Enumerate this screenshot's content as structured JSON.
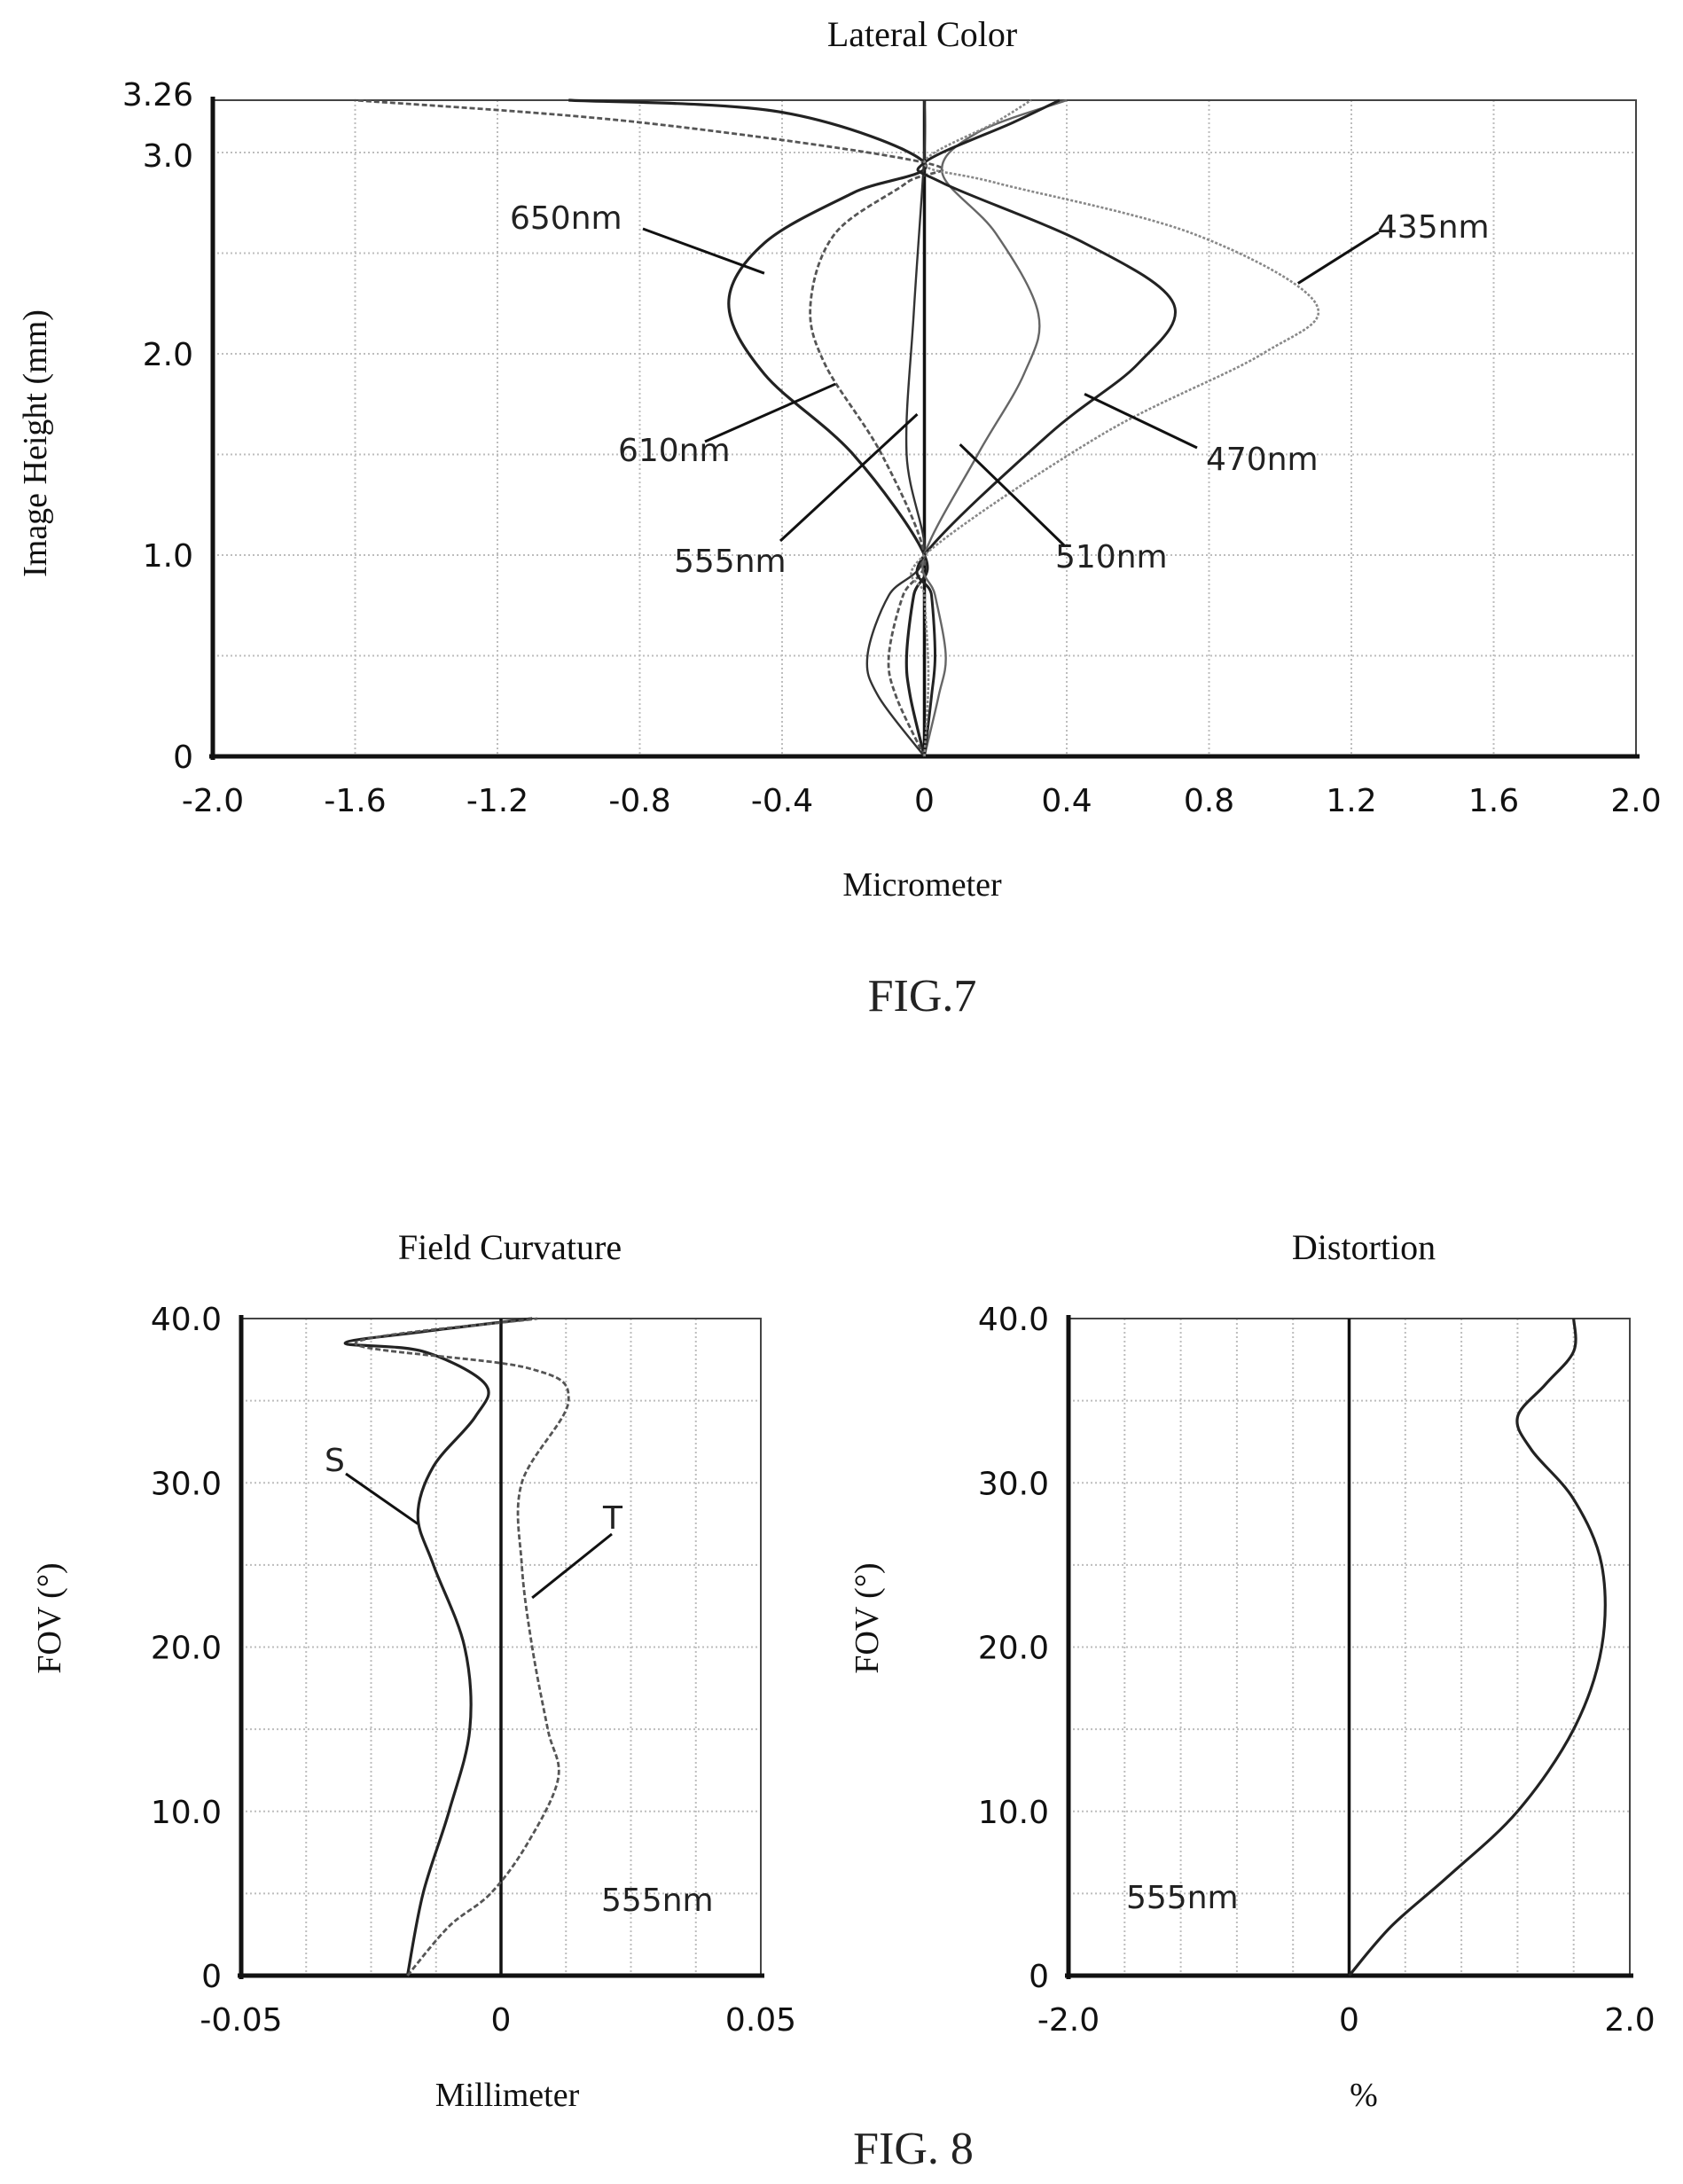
{
  "figures": {
    "fig7_caption": "FIG.7",
    "fig8_caption": "FIG. 8"
  },
  "chart_data": [
    {
      "type": "line",
      "title": "Lateral Color",
      "xlabel": "Micrometer",
      "ylabel": "Image Height (mm)",
      "xlim": [
        -2.0,
        2.0
      ],
      "ylim": [
        0,
        3.26
      ],
      "x_ticks": [
        "-2.0",
        "-1.6",
        "-1.2",
        "-0.8",
        "-0.4",
        "0",
        "0.4",
        "0.8",
        "1.2",
        "1.6",
        "2.0"
      ],
      "y_ticks": [
        "0",
        "1.0",
        "2.0",
        "3.0",
        "3.26"
      ],
      "grid": true,
      "series": [
        {
          "name": "650nm",
          "points": [
            [
              0,
              0
            ],
            [
              -0.04,
              0.3
            ],
            [
              -0.05,
              0.5
            ],
            [
              -0.03,
              0.8
            ],
            [
              0,
              1.0
            ],
            [
              -0.2,
              1.5
            ],
            [
              -0.45,
              1.9
            ],
            [
              -0.55,
              2.25
            ],
            [
              -0.45,
              2.55
            ],
            [
              -0.2,
              2.8
            ],
            [
              0,
              2.95
            ],
            [
              -0.4,
              3.2
            ],
            [
              -1.0,
              3.26
            ]
          ]
        },
        {
          "name": "610nm",
          "points": [
            [
              0,
              0
            ],
            [
              -0.08,
              0.3
            ],
            [
              -0.1,
              0.5
            ],
            [
              -0.06,
              0.8
            ],
            [
              0,
              1.0
            ],
            [
              -0.12,
              1.5
            ],
            [
              -0.28,
              1.95
            ],
            [
              -0.32,
              2.25
            ],
            [
              -0.25,
              2.6
            ],
            [
              -0.05,
              2.85
            ],
            [
              0,
              2.95
            ],
            [
              -0.8,
              3.15
            ],
            [
              -1.6,
              3.26
            ]
          ]
        },
        {
          "name": "555nm",
          "points": [
            [
              0,
              0
            ],
            [
              -0.13,
              0.3
            ],
            [
              -0.16,
              0.5
            ],
            [
              -0.1,
              0.8
            ],
            [
              0,
              1.0
            ],
            [
              -0.05,
              1.5
            ],
            [
              -0.03,
              2.2
            ],
            [
              0,
              3.0
            ],
            [
              0,
              3.26
            ]
          ]
        },
        {
          "name": "510nm",
          "points": [
            [
              0,
              0
            ],
            [
              0.04,
              0.3
            ],
            [
              0.06,
              0.5
            ],
            [
              0.03,
              0.8
            ],
            [
              0,
              1.0
            ],
            [
              0.15,
              1.5
            ],
            [
              0.28,
              1.9
            ],
            [
              0.32,
              2.2
            ],
            [
              0.2,
              2.6
            ],
            [
              0.05,
              2.9
            ],
            [
              0.15,
              3.1
            ],
            [
              0.4,
              3.26
            ]
          ]
        },
        {
          "name": "470nm",
          "points": [
            [
              0,
              0
            ],
            [
              0.02,
              0.3
            ],
            [
              0.03,
              0.5
            ],
            [
              0.02,
              0.8
            ],
            [
              0,
              1.0
            ],
            [
              0.35,
              1.6
            ],
            [
              0.6,
              1.95
            ],
            [
              0.7,
              2.25
            ],
            [
              0.45,
              2.55
            ],
            [
              0.05,
              2.85
            ],
            [
              0,
              2.95
            ],
            [
              0.25,
              3.15
            ],
            [
              0.38,
              3.26
            ]
          ]
        },
        {
          "name": "435nm",
          "points": [
            [
              0,
              0
            ],
            [
              0.01,
              0.3
            ],
            [
              0.01,
              0.5
            ],
            [
              0,
              0.8
            ],
            [
              0,
              1.0
            ],
            [
              0.5,
              1.6
            ],
            [
              0.95,
              2.0
            ],
            [
              1.1,
              2.25
            ],
            [
              0.75,
              2.6
            ],
            [
              0.2,
              2.85
            ],
            [
              0,
              2.95
            ],
            [
              0.2,
              3.15
            ],
            [
              0.3,
              3.26
            ]
          ]
        }
      ],
      "annotations": [
        "650nm",
        "610nm",
        "555nm",
        "510nm",
        "470nm",
        "435nm"
      ]
    },
    {
      "type": "line",
      "title": "Field Curvature",
      "xlabel": "Millimeter",
      "ylabel": "FOV (°)",
      "xlim": [
        -0.05,
        0.05
      ],
      "ylim": [
        0,
        40.0
      ],
      "x_ticks": [
        "-0.05",
        "0",
        "0.05"
      ],
      "y_ticks": [
        "0",
        "10.0",
        "20.0",
        "30.0",
        "40.0"
      ],
      "grid": true,
      "annotation": "555nm",
      "series": [
        {
          "name": "S",
          "points": [
            [
              -0.018,
              0
            ],
            [
              -0.015,
              5
            ],
            [
              -0.01,
              10
            ],
            [
              -0.006,
              15
            ],
            [
              -0.007,
              20
            ],
            [
              -0.013,
              25
            ],
            [
              -0.016,
              28
            ],
            [
              -0.013,
              31
            ],
            [
              -0.005,
              34
            ],
            [
              -0.003,
              36
            ],
            [
              -0.015,
              38
            ],
            [
              -0.03,
              38.5
            ],
            [
              -0.015,
              39.2
            ],
            [
              0.006,
              40
            ]
          ]
        },
        {
          "name": "T",
          "points": [
            [
              -0.018,
              0
            ],
            [
              -0.01,
              3
            ],
            [
              -0.002,
              5
            ],
            [
              0.005,
              8
            ],
            [
              0.011,
              12
            ],
            [
              0.009,
              15
            ],
            [
              0.006,
              20
            ],
            [
              0.004,
              25
            ],
            [
              0.004,
              30
            ],
            [
              0.013,
              35
            ],
            [
              0.005,
              37
            ],
            [
              -0.028,
              38.5
            ],
            [
              0.007,
              40
            ]
          ]
        }
      ]
    },
    {
      "type": "line",
      "title": "Distortion",
      "xlabel": "%",
      "ylabel": "FOV (°)",
      "xlim": [
        -2.0,
        2.0
      ],
      "ylim": [
        0,
        40.0
      ],
      "x_ticks": [
        "-2.0",
        "0",
        "2.0"
      ],
      "y_ticks": [
        "0",
        "10.0",
        "20.0",
        "30.0",
        "40.0"
      ],
      "grid": true,
      "annotation": "555nm",
      "series": [
        {
          "name": "",
          "points": [
            [
              0,
              0
            ],
            [
              0.3,
              3
            ],
            [
              0.7,
              6
            ],
            [
              1.2,
              10
            ],
            [
              1.6,
              15
            ],
            [
              1.8,
              20
            ],
            [
              1.8,
              25
            ],
            [
              1.6,
              29
            ],
            [
              1.3,
              32
            ],
            [
              1.2,
              34
            ],
            [
              1.4,
              36
            ],
            [
              1.6,
              38
            ],
            [
              1.6,
              40
            ]
          ]
        }
      ]
    }
  ]
}
